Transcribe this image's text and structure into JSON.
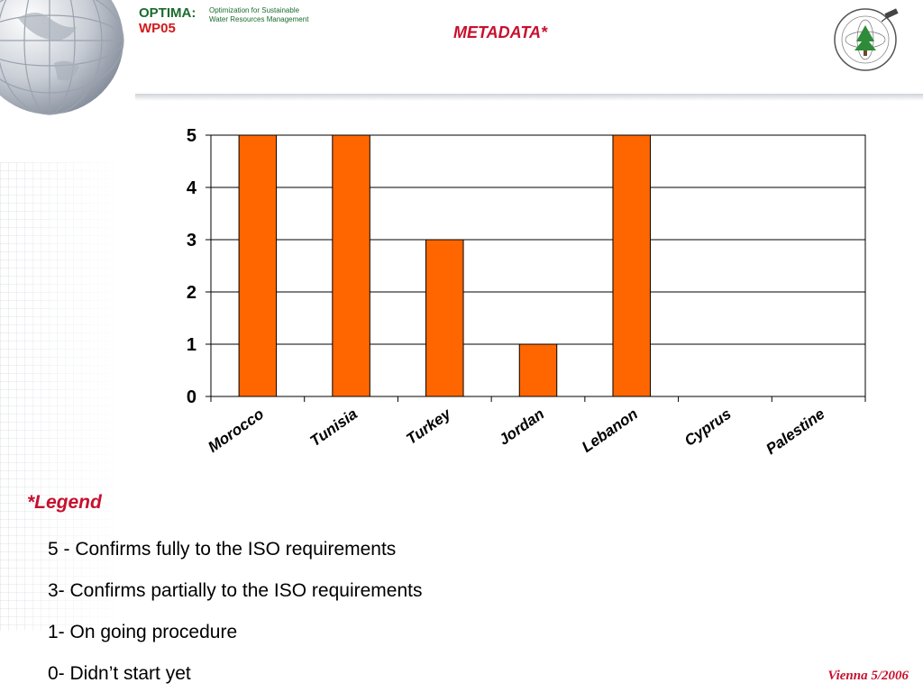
{
  "header": {
    "brand_name": "OPTIMA:",
    "brand_wp": "WP05",
    "brand_desc_line1": "Optimization for Sustainable",
    "brand_desc_line2": "Water Resources Management",
    "title": "METADATA*",
    "logo_icon": "cedar-satellite-logo"
  },
  "colors": {
    "bar": "#ff6600",
    "title": "#c8102e",
    "brand_green": "#1a6b2e",
    "brand_red": "#d11a1a"
  },
  "chart_data": {
    "type": "bar",
    "categories": [
      "Morocco",
      "Tunisia",
      "Turkey",
      "Jordan",
      "Lebanon",
      "Cyprus",
      "Palestine"
    ],
    "values": [
      5,
      5,
      3,
      1,
      5,
      0,
      0
    ],
    "title": "",
    "xlabel": "",
    "ylabel": "",
    "ylim": [
      0,
      5
    ],
    "yticks": [
      "0",
      "1",
      "2",
      "3",
      "4",
      "5"
    ],
    "grid": true,
    "legend": "none"
  },
  "legend": {
    "title": "*Legend",
    "items": [
      "5 - Confirms fully to the ISO requirements",
      "3- Confirms partially to the ISO requirements",
      "1- On going procedure",
      "0- Didn’t start yet"
    ]
  },
  "footer": {
    "date": "Vienna 5/2006"
  }
}
